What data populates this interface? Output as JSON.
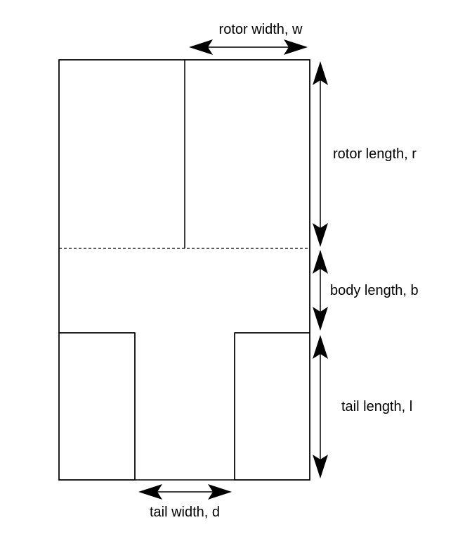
{
  "labels": {
    "rotor_width": "rotor width, w",
    "rotor_length": "rotor length, r",
    "body_length": "body length, b",
    "tail_length": "tail length, l",
    "tail_width": "tail width, d"
  },
  "colors": {
    "line": "#000000",
    "background": "#ffffff"
  }
}
